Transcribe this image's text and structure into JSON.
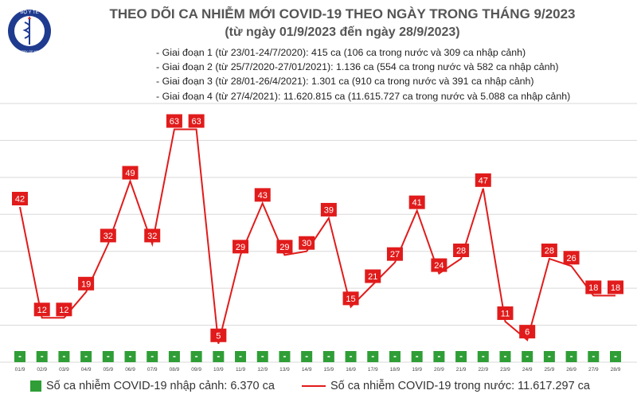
{
  "header": {
    "title": "THEO DÕI CA NHIỄM MỚI COVID-19 THEO NGÀY TRONG THÁNG 9/2023",
    "subtitle": "(từ ngày 01/9/2023 đến ngày 28/9/2023)",
    "logo_text": "BỘ Y TẾ",
    "logo_subtext": "MINISTRY OF HEALTH"
  },
  "notes": [
    "- Giai đoạn 1 (từ 23/01-24/7/2020): 415 ca (106 ca trong nước và 309 ca nhập cảnh)",
    "- Giai đoạn 2 (từ 25/7/2020-27/01/2021): 1.136 ca (554 ca trong nước và 582 ca nhập cảnh)",
    "- Giai đoạn 3 (từ 28/01-26/4/2021): 1.301 ca (910 ca trong nước và 391 ca nhập cảnh)",
    "- Giai đoạn 4 (từ 27/4/2021): 11.620.815 ca (11.615.727 ca trong nước và 5.088 ca nhập cảnh)"
  ],
  "legend": {
    "imported": "Số ca nhiễm COVID-19 nhập cảnh: 6.370 ca",
    "domestic": "Số ca nhiễm COVID-19 trong nước: 11.617.297 ca"
  },
  "colors": {
    "line": "#e11b1b",
    "label_bg": "#e11b1b",
    "bar": "#2f9e36",
    "logo": "#1f3b8f"
  },
  "chart_data": {
    "type": "line",
    "categories": [
      "01/9",
      "02/9",
      "03/9",
      "04/9",
      "05/9",
      "06/9",
      "07/9",
      "08/9",
      "09/9",
      "10/9",
      "11/9",
      "12/9",
      "13/9",
      "14/9",
      "15/9",
      "16/9",
      "17/9",
      "18/9",
      "19/9",
      "20/9",
      "21/9",
      "22/9",
      "23/9",
      "24/9",
      "25/9",
      "26/9",
      "27/9",
      "28/9"
    ],
    "series": [
      {
        "values": [
          42,
          12,
          12,
          19,
          32,
          49,
          32,
          63,
          63,
          5,
          29,
          43,
          29,
          30,
          39,
          15,
          21,
          27,
          41,
          24,
          28,
          47,
          11,
          6,
          28,
          26,
          18,
          18
        ]
      },
      {
        "values": [
          0,
          0,
          0,
          0,
          0,
          0,
          0,
          0,
          0,
          0,
          0,
          0,
          0,
          0,
          0,
          0,
          0,
          0,
          0,
          0,
          0,
          0,
          0,
          0,
          0,
          0,
          0,
          0
        ]
      }
    ],
    "ylim": [
      0,
      70
    ],
    "grid": true,
    "legend_position": "bottom"
  }
}
